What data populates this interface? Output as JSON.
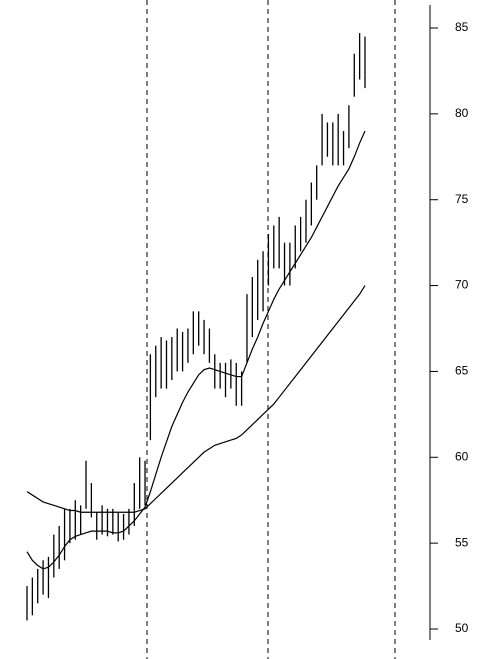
{
  "chart_data": {
    "type": "ohlc",
    "high": [
      52.5,
      53,
      53.5,
      54,
      54.2,
      55.5,
      56,
      57,
      57,
      57.5,
      57.2,
      59.8,
      58.5,
      56.8,
      57.2,
      57,
      57,
      56.8,
      56.7,
      57,
      58.5,
      60,
      59.8,
      66,
      66.5,
      67,
      66.8,
      67,
      67.5,
      67.3,
      67.5,
      68.5,
      68.5,
      68,
      67.5,
      66,
      65.5,
      65.5,
      65.7,
      65.5,
      65,
      69.5,
      70.5,
      71.5,
      72,
      73,
      73.5,
      74,
      72.5,
      72.5,
      73.5,
      74,
      75,
      76,
      77,
      80,
      79.5,
      79.5,
      80,
      79,
      80.5,
      83.5,
      84.7,
      84.5
    ],
    "low": [
      50.5,
      50.8,
      51.5,
      52,
      51.8,
      53,
      53.5,
      54,
      55,
      55.2,
      55.5,
      57,
      56.5,
      55.2,
      55.5,
      55.4,
      55.5,
      55.1,
      55.2,
      55.5,
      56,
      57,
      57.2,
      61,
      63.5,
      64,
      64,
      64.5,
      65,
      65,
      65.5,
      66,
      66.5,
      66,
      65.5,
      64,
      64,
      63.5,
      64,
      63,
      63,
      65.5,
      67,
      68,
      68.5,
      70,
      71,
      71,
      70,
      70,
      71,
      72,
      72.5,
      73.5,
      75,
      77,
      77.5,
      77,
      77,
      77,
      78,
      81,
      82,
      81.5
    ],
    "moving_averages": [
      [
        54.5,
        54,
        53.7,
        53.5,
        53.6,
        53.9,
        54.3,
        54.8,
        55.2,
        55.4,
        55.5,
        55.6,
        55.7,
        55.7,
        55.7,
        55.7,
        55.6,
        55.6,
        55.7,
        56,
        56.3,
        56.7,
        57.1,
        58,
        59,
        60,
        60.9,
        61.8,
        62.5,
        63.2,
        63.8,
        64.3,
        64.8,
        65.1,
        65.2,
        65.1,
        65,
        64.9,
        64.8,
        64.7,
        64.7,
        65.5,
        66.3,
        67,
        67.8,
        68.5,
        69.2,
        69.8,
        70.3,
        70.8,
        71.3,
        71.8,
        72.3,
        72.8,
        73.4,
        74,
        74.6,
        75.2,
        75.8,
        76.3,
        76.8,
        77.5,
        78.3,
        79
      ],
      [
        58,
        57.8,
        57.6,
        57.4,
        57.3,
        57.2,
        57.1,
        57,
        56.9,
        56.9,
        56.8,
        56.8,
        56.8,
        56.8,
        56.8,
        56.8,
        56.8,
        56.8,
        56.8,
        56.8,
        56.8,
        56.9,
        57,
        57.3,
        57.6,
        57.9,
        58.2,
        58.5,
        58.8,
        59.1,
        59.4,
        59.7,
        60,
        60.3,
        60.5,
        60.7,
        60.8,
        60.9,
        61,
        61.1,
        61.3,
        61.6,
        61.9,
        62.2,
        62.5,
        62.8,
        63.1,
        63.5,
        63.9,
        64.3,
        64.7,
        65.1,
        65.5,
        65.9,
        66.3,
        66.7,
        67.1,
        67.5,
        67.9,
        68.3,
        68.7,
        69.1,
        69.5,
        70
      ]
    ],
    "color": "#000000",
    "ylim": [
      50,
      85
    ],
    "yticks": [
      50,
      55,
      60,
      65,
      70,
      75,
      80,
      85
    ]
  }
}
